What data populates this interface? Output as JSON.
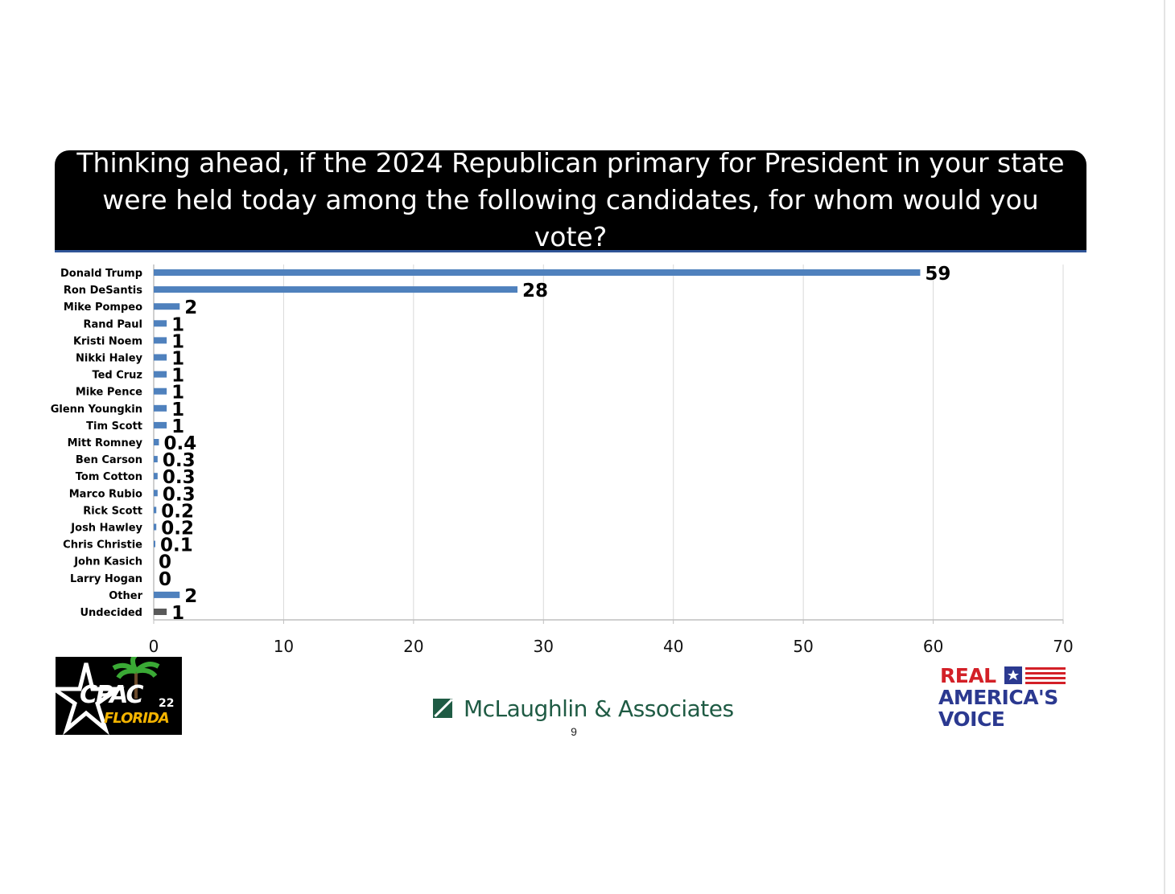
{
  "header": {
    "question": "Thinking ahead, if the 2024 Republican primary for President in your state were held today among the following candidates, for whom would you vote?"
  },
  "chart_data": {
    "type": "bar",
    "orientation": "horizontal",
    "categories": [
      "Donald Trump",
      "Ron DeSantis",
      "Mike Pompeo",
      "Rand Paul",
      "Kristi Noem",
      "Nikki Haley",
      "Ted Cruz",
      "Mike Pence",
      "Glenn Youngkin",
      "Tim Scott",
      "Mitt Romney",
      "Ben Carson",
      "Tom Cotton",
      "Marco Rubio",
      "Rick Scott",
      "Josh Hawley",
      "Chris Christie",
      "John Kasich",
      "Larry Hogan",
      "Other",
      "Undecided"
    ],
    "values": [
      59,
      28,
      2,
      1,
      1,
      1,
      1,
      1,
      1,
      1,
      0.4,
      0.3,
      0.3,
      0.3,
      0.2,
      0.2,
      0.1,
      0,
      0,
      2,
      1
    ],
    "value_labels": [
      "59",
      "28",
      "2",
      "1",
      "1",
      "1",
      "1",
      "1",
      "1",
      "1",
      "0.4",
      "0.3",
      "0.3",
      "0.3",
      "0.2",
      "0.2",
      "0.1",
      "0",
      "0",
      "2",
      "1"
    ],
    "bar_colors": [
      "#4f81bd",
      "#4f81bd",
      "#4f81bd",
      "#4f81bd",
      "#4f81bd",
      "#4f81bd",
      "#4f81bd",
      "#4f81bd",
      "#4f81bd",
      "#4f81bd",
      "#4f81bd",
      "#4f81bd",
      "#4f81bd",
      "#4f81bd",
      "#4f81bd",
      "#4f81bd",
      "#4f81bd",
      "#4f81bd",
      "#4f81bd",
      "#4f81bd",
      "#595959"
    ],
    "xlim": [
      0,
      70
    ],
    "xticks": [
      0,
      10,
      20,
      30,
      40,
      50,
      60,
      70
    ],
    "grid": true,
    "legend": "none"
  },
  "footer": {
    "cpac_logo": {
      "main": "CPAC",
      "number": "22",
      "state": "FLORIDA"
    },
    "pollster": "McLaughlin & Associates",
    "page_number": "9",
    "sponsor_logo": {
      "line1": "REAL",
      "line2": "AMERICA'S",
      "line3": "VOICE"
    }
  },
  "colors": {
    "bar": "#4f81bd",
    "undecided_bar": "#595959",
    "title_background": "#000000",
    "title_border": "#2f5597",
    "pollster_green": "#1f5b44"
  }
}
